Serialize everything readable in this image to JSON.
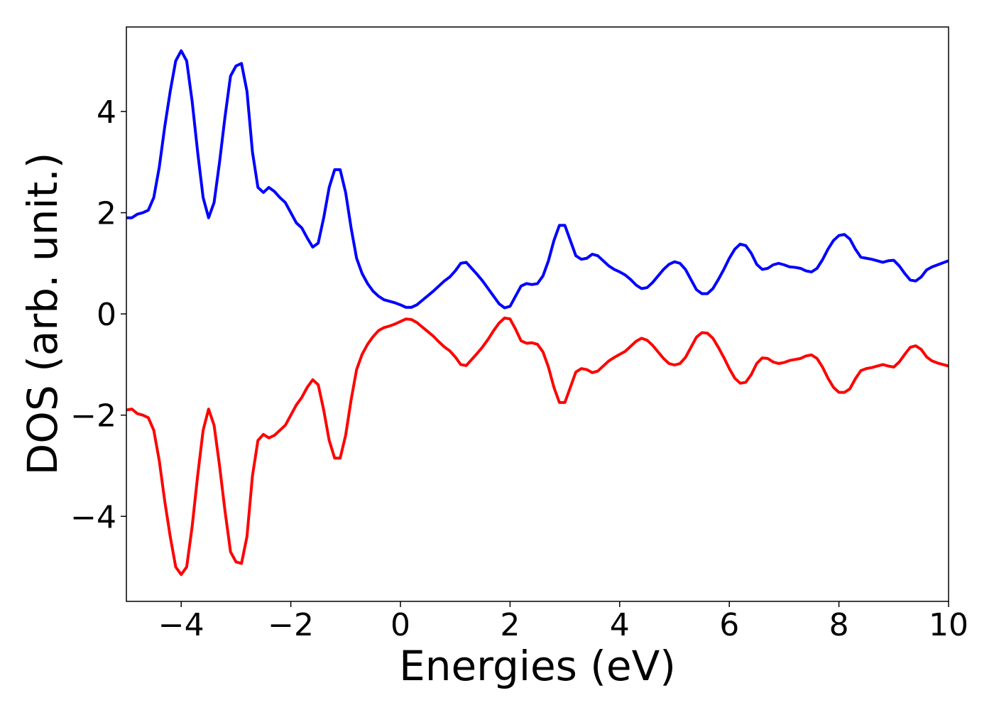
{
  "chart_data": {
    "type": "line",
    "x_label": "Energies (eV)",
    "y_label": "DOS (arb. unit.)",
    "xlim": [
      -5,
      10
    ],
    "ylim": [
      -5.68,
      5.67
    ],
    "xticks": [
      {
        "value": -4,
        "label": "−4"
      },
      {
        "value": -2,
        "label": "−2"
      },
      0,
      2,
      4,
      6,
      8,
      10
    ],
    "yticks": [
      {
        "value": -4,
        "label": "−4"
      },
      {
        "value": -2,
        "label": "−2"
      },
      0,
      2,
      4
    ],
    "grid": false,
    "x": [
      -5,
      -4.9,
      -4.8,
      -4.7,
      -4.6,
      -4.5,
      -4.4,
      -4.3,
      -4.2,
      -4.1,
      -4,
      -3.9,
      -3.8,
      -3.7,
      -3.6,
      -3.5,
      -3.4,
      -3.3,
      -3.2,
      -3.1,
      -3,
      -2.9,
      -2.8,
      -2.7,
      -2.6,
      -2.5,
      -2.4,
      -2.3,
      -2.2,
      -2.1,
      -2,
      -1.9,
      -1.8,
      -1.7,
      -1.6,
      -1.5,
      -1.4,
      -1.3,
      -1.2,
      -1.1,
      -1,
      -0.9,
      -0.8,
      -0.7,
      -0.6,
      -0.5,
      -0.4,
      -0.3,
      -0.2,
      -0.1,
      0,
      0.1,
      0.2,
      0.3,
      0.4,
      0.5,
      0.6,
      0.7,
      0.8,
      0.9,
      1,
      1.1,
      1.2,
      1.3,
      1.4,
      1.5,
      1.6,
      1.7,
      1.8,
      1.9,
      2,
      2.1,
      2.2,
      2.3,
      2.4,
      2.5,
      2.6,
      2.7,
      2.8,
      2.9,
      3,
      3.1,
      3.2,
      3.3,
      3.4,
      3.5,
      3.6,
      3.7,
      3.8,
      3.9,
      4,
      4.1,
      4.2,
      4.3,
      4.4,
      4.5,
      4.6,
      4.7,
      4.8,
      4.9,
      5,
      5.1,
      5.2,
      5.3,
      5.4,
      5.5,
      5.6,
      5.7,
      5.8,
      5.9,
      6,
      6.1,
      6.2,
      6.3,
      6.4,
      6.5,
      6.6,
      6.7,
      6.8,
      6.9,
      7,
      7.1,
      7.2,
      7.3,
      7.4,
      7.5,
      7.6,
      7.7,
      7.8,
      7.9,
      8,
      8.1,
      8.2,
      8.3,
      8.4,
      8.5,
      8.6,
      8.7,
      8.8,
      8.9,
      9,
      9.1,
      9.2,
      9.3,
      9.4,
      9.5,
      9.6,
      9.7,
      9.8,
      9.9,
      10
    ],
    "series": [
      {
        "color": "#0000ff",
        "values": [
          1.9,
          1.9,
          1.97,
          2.0,
          2.05,
          2.3,
          2.9,
          3.7,
          4.4,
          5.0,
          5.2,
          5.0,
          4.2,
          3.2,
          2.3,
          1.9,
          2.2,
          3.0,
          3.9,
          4.7,
          4.9,
          4.95,
          4.4,
          3.2,
          2.5,
          2.4,
          2.5,
          2.42,
          2.3,
          2.2,
          2.0,
          1.8,
          1.7,
          1.5,
          1.32,
          1.4,
          1.9,
          2.5,
          2.85,
          2.85,
          2.4,
          1.7,
          1.1,
          0.8,
          0.6,
          0.45,
          0.35,
          0.28,
          0.25,
          0.22,
          0.18,
          0.13,
          0.13,
          0.18,
          0.27,
          0.36,
          0.45,
          0.55,
          0.65,
          0.73,
          0.85,
          1.0,
          1.02,
          0.9,
          0.78,
          0.65,
          0.5,
          0.35,
          0.2,
          0.12,
          0.15,
          0.35,
          0.55,
          0.6,
          0.58,
          0.6,
          0.75,
          1.05,
          1.45,
          1.75,
          1.75,
          1.45,
          1.15,
          1.08,
          1.1,
          1.18,
          1.15,
          1.05,
          0.95,
          0.88,
          0.83,
          0.77,
          0.68,
          0.57,
          0.5,
          0.52,
          0.62,
          0.75,
          0.88,
          0.98,
          1.03,
          1.0,
          0.88,
          0.68,
          0.48,
          0.4,
          0.4,
          0.5,
          0.68,
          0.88,
          1.1,
          1.28,
          1.38,
          1.35,
          1.2,
          0.98,
          0.88,
          0.9,
          0.97,
          1.0,
          0.97,
          0.93,
          0.92,
          0.9,
          0.85,
          0.83,
          0.9,
          1.07,
          1.28,
          1.45,
          1.55,
          1.57,
          1.48,
          1.28,
          1.12,
          1.1,
          1.08,
          1.05,
          1.02,
          1.05,
          1.06,
          0.95,
          0.8,
          0.67,
          0.65,
          0.73,
          0.87,
          0.93,
          0.97,
          1.01,
          1.05
        ]
      },
      {
        "color": "#ff0000",
        "values": [
          -1.9,
          -1.88,
          -1.97,
          -2.0,
          -2.05,
          -2.3,
          -2.9,
          -3.7,
          -4.4,
          -5.0,
          -5.15,
          -5.0,
          -4.2,
          -3.2,
          -2.3,
          -1.88,
          -2.2,
          -3.0,
          -3.9,
          -4.7,
          -4.9,
          -4.93,
          -4.4,
          -3.2,
          -2.5,
          -2.38,
          -2.45,
          -2.4,
          -2.3,
          -2.2,
          -2.0,
          -1.8,
          -1.65,
          -1.45,
          -1.3,
          -1.4,
          -1.9,
          -2.5,
          -2.85,
          -2.85,
          -2.4,
          -1.7,
          -1.1,
          -0.8,
          -0.6,
          -0.45,
          -0.33,
          -0.27,
          -0.24,
          -0.2,
          -0.15,
          -0.1,
          -0.11,
          -0.17,
          -0.26,
          -0.35,
          -0.44,
          -0.55,
          -0.65,
          -0.73,
          -0.85,
          -1.0,
          -1.02,
          -0.9,
          -0.78,
          -0.65,
          -0.5,
          -0.33,
          -0.18,
          -0.08,
          -0.1,
          -0.3,
          -0.53,
          -0.58,
          -0.57,
          -0.6,
          -0.75,
          -1.05,
          -1.45,
          -1.75,
          -1.75,
          -1.45,
          -1.15,
          -1.08,
          -1.1,
          -1.16,
          -1.13,
          -1.03,
          -0.93,
          -0.86,
          -0.8,
          -0.74,
          -0.64,
          -0.54,
          -0.48,
          -0.52,
          -0.62,
          -0.75,
          -0.88,
          -0.98,
          -1.01,
          -0.98,
          -0.86,
          -0.66,
          -0.46,
          -0.37,
          -0.38,
          -0.48,
          -0.66,
          -0.86,
          -1.08,
          -1.27,
          -1.37,
          -1.35,
          -1.2,
          -0.98,
          -0.87,
          -0.88,
          -0.95,
          -0.98,
          -0.96,
          -0.92,
          -0.9,
          -0.88,
          -0.83,
          -0.81,
          -0.88,
          -1.05,
          -1.27,
          -1.45,
          -1.55,
          -1.55,
          -1.48,
          -1.28,
          -1.12,
          -1.08,
          -1.06,
          -1.03,
          -1.0,
          -1.03,
          -1.05,
          -0.95,
          -0.8,
          -0.66,
          -0.63,
          -0.7,
          -0.85,
          -0.93,
          -0.97,
          -1.0,
          -1.03
        ]
      }
    ]
  }
}
